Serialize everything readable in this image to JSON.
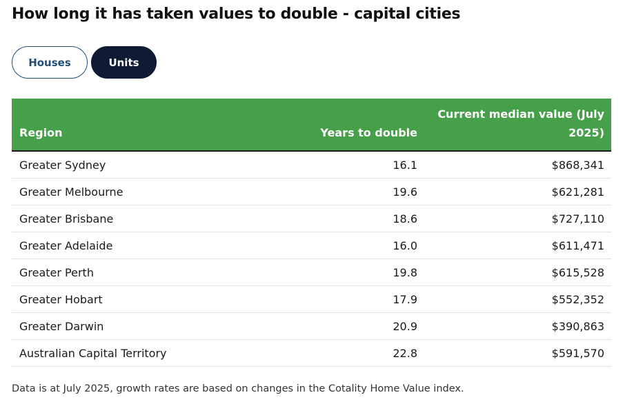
{
  "header": {
    "title": "How long it has taken values to double - capital cities"
  },
  "tabs": [
    "Houses",
    "Units"
  ],
  "table": {
    "columns": [
      "Region",
      "Years to double",
      "Current median value (July 2025)"
    ],
    "rows": [
      [
        "Greater Sydney",
        "16.1",
        "$868,341"
      ],
      [
        "Greater Melbourne",
        "19.6",
        "$621,281"
      ],
      [
        "Greater Brisbane",
        "18.6",
        "$727,110"
      ],
      [
        "Greater Adelaide",
        "16.0",
        "$611,471"
      ],
      [
        "Greater Perth",
        "19.8",
        "$615,528"
      ],
      [
        "Greater Hobart",
        "17.9",
        "$552,352"
      ],
      [
        "Greater Darwin",
        "20.9",
        "$390,863"
      ],
      [
        "Australian Capital Territory",
        "22.8",
        "$591,570"
      ]
    ]
  },
  "footnote": "Data is at July 2025, growth rates are based on changes in the Cotality Home Value index."
}
